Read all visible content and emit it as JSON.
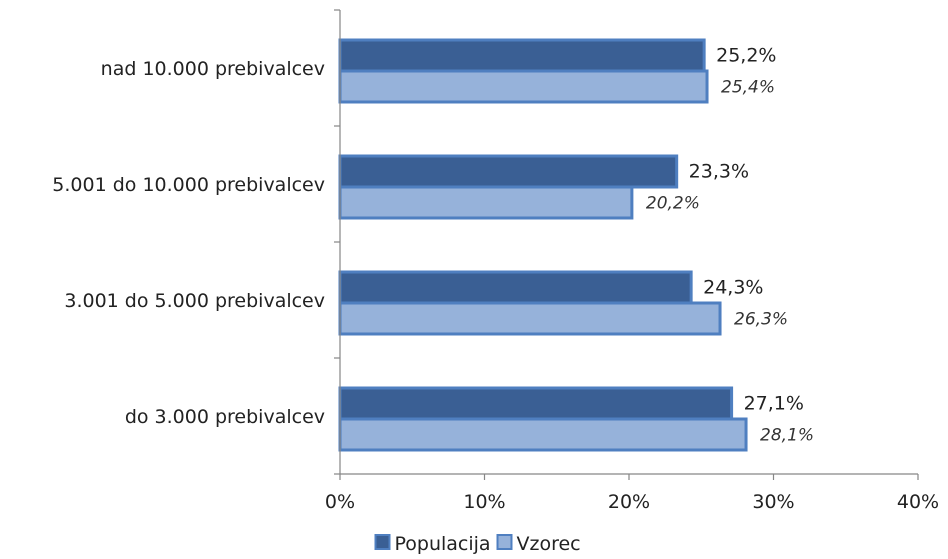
{
  "chart_data": {
    "type": "bar",
    "orientation": "horizontal",
    "categories": [
      "do 3.000 prebivalcev",
      "3.001 do 5.000 prebivalcev",
      "5.001 do 10.000 prebivalcev",
      "nad 10.000 prebivalcev"
    ],
    "series": [
      {
        "name": "Populacija",
        "values": [
          27.1,
          24.3,
          23.3,
          25.2
        ],
        "labels": [
          "27,1%",
          "24,3%",
          "23,3%",
          "25,2%"
        ],
        "color": "#3a5f94",
        "border": "#4f7fc0"
      },
      {
        "name": "Vzorec",
        "values": [
          28.1,
          26.3,
          20.2,
          25.4
        ],
        "labels": [
          "28,1%",
          "26,3%",
          "20,2%",
          "25,4%"
        ],
        "color": "#96b2da",
        "border": "#4f7fc0"
      }
    ],
    "xlim": [
      0,
      40
    ],
    "xticks": [
      0,
      10,
      20,
      30,
      40
    ],
    "xtick_labels": [
      "0%",
      "10%",
      "20%",
      "30%",
      "40%"
    ],
    "title": "",
    "xlabel": "",
    "ylabel": "",
    "grid": false,
    "legend": "bottom"
  }
}
